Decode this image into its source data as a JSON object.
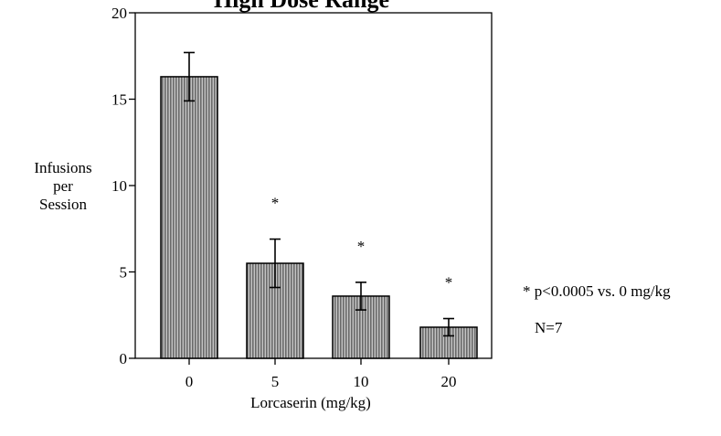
{
  "chart_data": {
    "type": "bar",
    "title": "High Dose Range",
    "xlabel": "Lorcaserin (mg/kg)",
    "ylabel": [
      "Infusions",
      "per",
      "Session"
    ],
    "categories": [
      "0",
      "5",
      "10",
      "20"
    ],
    "values": [
      16.3,
      5.5,
      3.6,
      1.8
    ],
    "errors": [
      1.4,
      1.4,
      0.8,
      0.5
    ],
    "significance": [
      "",
      "*",
      "*",
      "*"
    ],
    "yticks": [
      "0",
      "5",
      "10",
      "15",
      "20"
    ],
    "ylim": [
      0,
      20
    ],
    "grid": false,
    "bar_color": "#8a8a8a",
    "notes": [
      "* p<0.0005 vs. 0 mg/kg",
      "N=7"
    ]
  }
}
